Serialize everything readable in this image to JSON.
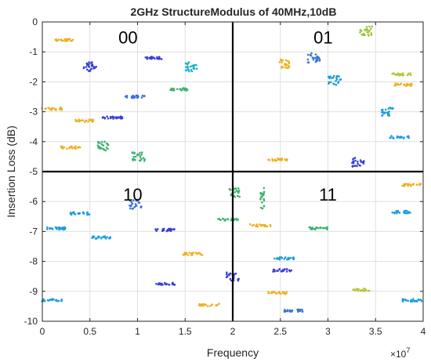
{
  "chart_data": {
    "type": "scatter",
    "title": "2GHz StructureModulus of 40MHz,10dB",
    "xlabel": "Frequency",
    "ylabel": "Insertion Loss (dB)",
    "x_exponent_label": "×10",
    "x_exponent": "7",
    "xlim": [
      0,
      40000000
    ],
    "ylim": [
      -10,
      0
    ],
    "xticks": [
      0,
      5000000,
      10000000,
      15000000,
      20000000,
      25000000,
      30000000,
      35000000,
      40000000
    ],
    "xtick_labels": [
      "0",
      "0.5",
      "1",
      "1.5",
      "2",
      "2.5",
      "3",
      "3.5",
      "4"
    ],
    "yticks": [
      0,
      -1,
      -2,
      -3,
      -4,
      -5,
      -6,
      -7,
      -8,
      -9,
      -10
    ],
    "ytick_labels": [
      "0",
      "-1",
      "-2",
      "-3",
      "-4",
      "-5",
      "-6",
      "-7",
      "-8",
      "-9",
      "-10"
    ],
    "grid": true,
    "divider_lines": {
      "x": 20000000,
      "y": -5
    },
    "quadrant_labels": [
      {
        "text": "00",
        "x": 9000000,
        "y": -0.3
      },
      {
        "text": "01",
        "x": 29500000,
        "y": -0.3
      },
      {
        "text": "10",
        "x": 9500000,
        "y": -5.55
      },
      {
        "text": "11",
        "x": 30000000,
        "y": -5.55
      }
    ],
    "clusters": [
      {
        "x": 2200000,
        "y": -0.6,
        "color": "#EDB120",
        "shape": "h"
      },
      {
        "x": 5000000,
        "y": -1.5,
        "color": "#3A3FD6",
        "shape": "b"
      },
      {
        "x": 11900000,
        "y": -1.2,
        "color": "#3A3FD6",
        "shape": "h"
      },
      {
        "x": 15600000,
        "y": -1.5,
        "color": "#1BB4C9",
        "shape": "b"
      },
      {
        "x": 34000000,
        "y": -0.3,
        "color": "#9CC33B",
        "shape": "b"
      },
      {
        "x": 25500000,
        "y": -1.4,
        "color": "#EDB120",
        "shape": "b"
      },
      {
        "x": 28500000,
        "y": -1.2,
        "color": "#3A73D6",
        "shape": "b"
      },
      {
        "x": 30700000,
        "y": -1.95,
        "color": "#1B9CE0",
        "shape": "b"
      },
      {
        "x": 37800000,
        "y": -1.75,
        "color": "#B7C63A",
        "shape": "h"
      },
      {
        "x": 37800000,
        "y": -2.1,
        "color": "#EDB120",
        "shape": "h"
      },
      {
        "x": 9800000,
        "y": -2.5,
        "color": "#3A73D6",
        "shape": "h"
      },
      {
        "x": 14300000,
        "y": -2.25,
        "color": "#3CB371",
        "shape": "h"
      },
      {
        "x": 1000000,
        "y": -2.9,
        "color": "#EDB120",
        "shape": "h"
      },
      {
        "x": 4400000,
        "y": -3.3,
        "color": "#EDB120",
        "shape": "h"
      },
      {
        "x": 7400000,
        "y": -3.2,
        "color": "#3A3FD6",
        "shape": "h"
      },
      {
        "x": 36300000,
        "y": -3.0,
        "color": "#1B9CE0",
        "shape": "b"
      },
      {
        "x": 3000000,
        "y": -4.2,
        "color": "#EDB120",
        "shape": "h"
      },
      {
        "x": 6300000,
        "y": -4.15,
        "color": "#3CB371",
        "shape": "b"
      },
      {
        "x": 10100000,
        "y": -4.5,
        "color": "#3CB371",
        "shape": "b"
      },
      {
        "x": 37500000,
        "y": -3.85,
        "color": "#1B9CE0",
        "shape": "h"
      },
      {
        "x": 24800000,
        "y": -4.6,
        "color": "#EDB120",
        "shape": "h"
      },
      {
        "x": 33200000,
        "y": -4.7,
        "color": "#3A3FD6",
        "shape": "b"
      },
      {
        "x": 20100000,
        "y": -5.7,
        "color": "#3CB371",
        "shape": "b"
      },
      {
        "x": 23100000,
        "y": -5.9,
        "color": "#3CB371",
        "shape": "v"
      },
      {
        "x": 9800000,
        "y": -6.1,
        "color": "#3A73D6",
        "shape": "b"
      },
      {
        "x": 1500000,
        "y": -6.9,
        "color": "#1B9CE0",
        "shape": "h"
      },
      {
        "x": 4000000,
        "y": -6.4,
        "color": "#1B9CE0",
        "shape": "h"
      },
      {
        "x": 6100000,
        "y": -7.2,
        "color": "#1B9CE0",
        "shape": "h"
      },
      {
        "x": 12800000,
        "y": -6.95,
        "color": "#3A3FD6",
        "shape": "h"
      },
      {
        "x": 19500000,
        "y": -6.6,
        "color": "#3CB371",
        "shape": "h"
      },
      {
        "x": 22900000,
        "y": -6.8,
        "color": "#EDB120",
        "shape": "h"
      },
      {
        "x": 28900000,
        "y": -6.9,
        "color": "#3CB371",
        "shape": "h"
      },
      {
        "x": 38800000,
        "y": -5.45,
        "color": "#EDB120",
        "shape": "h"
      },
      {
        "x": 37700000,
        "y": -6.35,
        "color": "#1B9CE0",
        "shape": "h"
      },
      {
        "x": 15800000,
        "y": -7.75,
        "color": "#EDB120",
        "shape": "h"
      },
      {
        "x": 25400000,
        "y": -7.9,
        "color": "#1B9CE0",
        "shape": "h"
      },
      {
        "x": 25200000,
        "y": -8.3,
        "color": "#3A3FD6",
        "shape": "h"
      },
      {
        "x": 20000000,
        "y": -8.5,
        "color": "#3A3FD6",
        "shape": "b"
      },
      {
        "x": 13000000,
        "y": -8.75,
        "color": "#3A3FD6",
        "shape": "h"
      },
      {
        "x": 1000000,
        "y": -9.3,
        "color": "#1B9CE0",
        "shape": "h"
      },
      {
        "x": 17500000,
        "y": -9.45,
        "color": "#EDB120",
        "shape": "h"
      },
      {
        "x": 24800000,
        "y": -9.05,
        "color": "#EDB120",
        "shape": "h"
      },
      {
        "x": 26300000,
        "y": -9.65,
        "color": "#3A73D6",
        "shape": "h"
      },
      {
        "x": 33700000,
        "y": -8.95,
        "color": "#B7C63A",
        "shape": "h"
      },
      {
        "x": 38800000,
        "y": -9.3,
        "color": "#1B9CE0",
        "shape": "h"
      }
    ]
  }
}
